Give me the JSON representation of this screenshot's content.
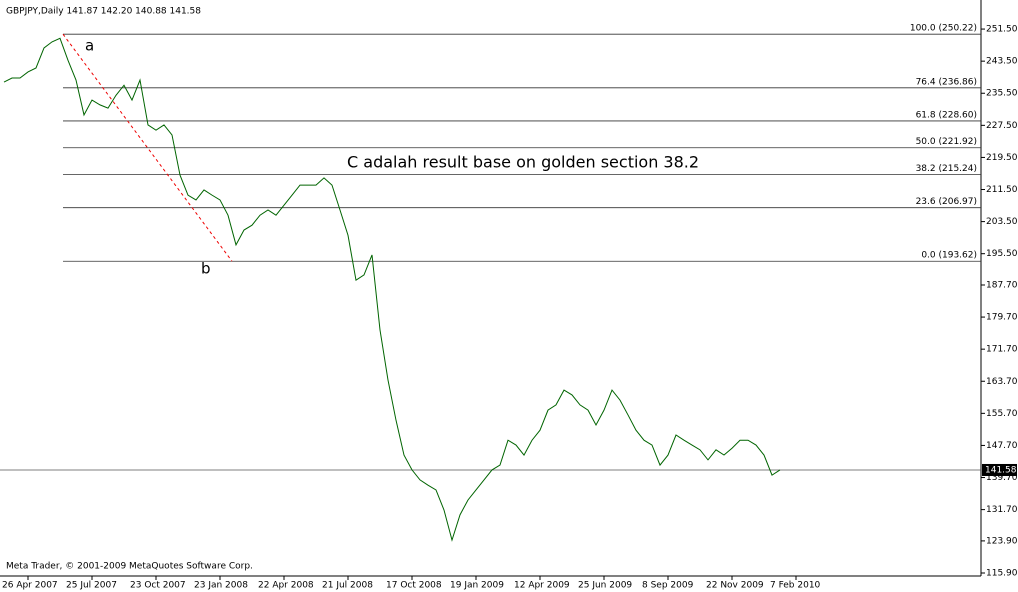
{
  "chart_data": {
    "type": "line",
    "title": "GBPJPY,Daily  141.87 142.20 140.88 141.58",
    "categories": [
      null,
      null,
      null,
      "26 Apr 2007",
      null,
      null,
      null,
      null,
      null,
      null,
      null,
      "25 Jul 2007",
      null,
      null,
      null,
      null,
      null,
      null,
      null,
      "23 Oct 2007",
      null,
      null,
      null,
      null,
      null,
      null,
      null,
      "23 Jan 2008",
      null,
      null,
      null,
      null,
      null,
      null,
      null,
      "22 Apr 2008",
      null,
      null,
      null,
      null,
      null,
      null,
      null,
      "21 Jul 2008",
      null,
      null,
      null,
      null,
      null,
      null,
      null,
      "17 Oct 2008",
      null,
      null,
      null,
      null,
      null,
      null,
      null,
      "19 Jan 2009",
      null,
      null,
      null,
      null,
      null,
      null,
      null,
      "12 Apr 2009",
      null,
      null,
      null,
      null,
      null,
      null,
      null,
      "25 Jun 2009",
      null,
      null,
      null,
      null,
      null,
      null,
      null,
      "8 Sep 2009",
      null,
      null,
      null,
      null,
      null,
      null,
      null,
      "22 Nov 2009",
      null,
      null,
      null,
      null,
      null,
      null,
      null,
      "7 Feb 2010"
    ],
    "series": [
      {
        "name": "GBPJPY",
        "color": "#006400",
        "values": [
          238.3,
          239.3,
          239.3,
          240.8,
          241.8,
          246.8,
          248.3,
          249.2,
          243.7,
          238.8,
          230.1,
          233.8,
          232.6,
          231.8,
          235.0,
          237.5,
          233.8,
          238.8,
          227.6,
          226.3,
          227.6,
          225.1,
          215.1,
          210.1,
          208.9,
          211.4,
          210.1,
          208.9,
          205.1,
          197.7,
          201.4,
          202.6,
          205.1,
          206.4,
          205.1,
          207.6,
          210.1,
          212.6,
          212.6,
          212.6,
          214.4,
          212.6,
          206.4,
          200.1,
          188.9,
          190.2,
          195.2,
          176.5,
          164.0,
          154.0,
          145.3,
          141.6,
          139.1,
          137.8,
          136.6,
          131.6,
          124.1,
          130.4,
          134.1,
          136.6,
          139.1,
          141.6,
          142.8,
          149.0,
          147.8,
          145.3,
          149.0,
          151.5,
          156.5,
          157.8,
          161.5,
          160.3,
          157.8,
          156.5,
          152.8,
          156.5,
          161.5,
          159.0,
          155.3,
          151.5,
          149.0,
          147.8,
          142.8,
          145.3,
          150.3,
          149.0,
          147.8,
          146.6,
          144.1,
          146.6,
          145.3,
          147.0,
          149.0,
          149.0,
          147.8,
          145.3,
          140.3,
          141.58,
          null,
          null
        ]
      }
    ],
    "ylim": [
      115.15,
      257.5
    ],
    "yticks": [
      {
        "value": 251.5,
        "label": "251.50"
      },
      {
        "value": 243.5,
        "label": "243.50"
      },
      {
        "value": 235.5,
        "label": "235.50"
      },
      {
        "value": 227.5,
        "label": "227.50"
      },
      {
        "value": 219.5,
        "label": "219.50"
      },
      {
        "value": 211.5,
        "label": "211.50"
      },
      {
        "value": 203.5,
        "label": "203.50"
      },
      {
        "value": 195.5,
        "label": "195.50"
      },
      {
        "value": 187.7,
        "label": "187.70"
      },
      {
        "value": 179.7,
        "label": "179.70"
      },
      {
        "value": 171.7,
        "label": "171.70"
      },
      {
        "value": 163.7,
        "label": "163.70"
      },
      {
        "value": 155.7,
        "label": "155.70"
      },
      {
        "value": 147.7,
        "label": "147.70"
      },
      {
        "value": 139.7,
        "label": "139.70"
      },
      {
        "value": 131.7,
        "label": "131.70"
      },
      {
        "value": 123.9,
        "label": "123.90"
      },
      {
        "value": 115.9,
        "label": "115.90"
      }
    ],
    "fib_levels": [
      {
        "value": 250.22,
        "label": "100.0 (250.22)"
      },
      {
        "value": 236.86,
        "label": "76.4 (236.86)"
      },
      {
        "value": 228.6,
        "label": "61.8 (228.60)"
      },
      {
        "value": 221.92,
        "label": "50.0 (221.92)"
      },
      {
        "value": 215.24,
        "label": "38.2 (215.24)"
      },
      {
        "value": 206.97,
        "label": "23.6 (206.97)"
      },
      {
        "value": 193.62,
        "label": "0.0 (193.62)"
      }
    ],
    "last_price": 141.58,
    "annotations": [
      "a",
      "b",
      "C adalah result base on golden section 38.2"
    ],
    "footer": "Meta Trader, © 2001-2009 MetaQuotes Software Corp."
  }
}
